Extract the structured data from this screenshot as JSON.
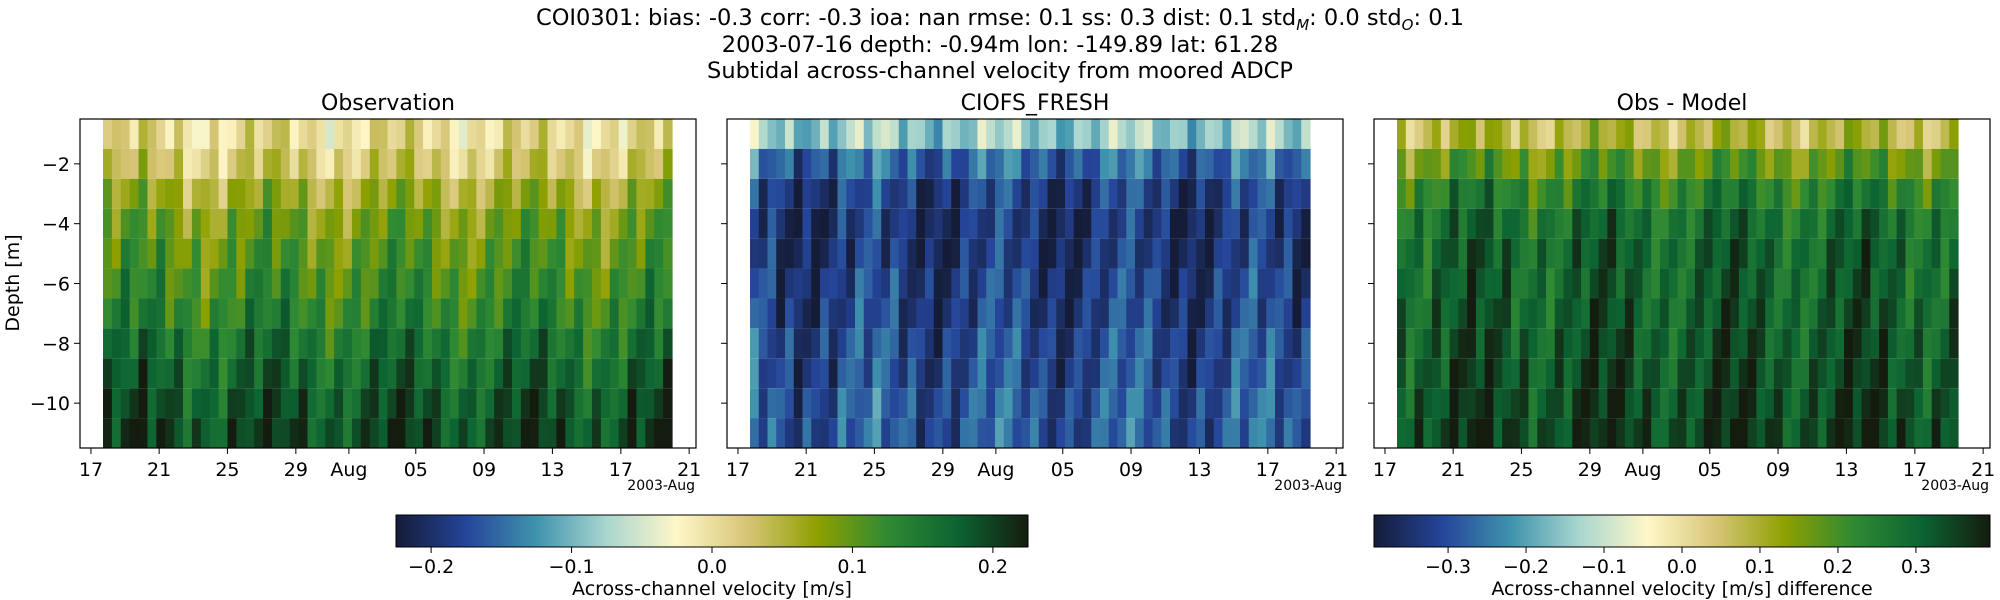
{
  "header": {
    "line1": {
      "prefix": "COI0301: bias: -0.3  corr: -0.3  ioa: nan  rmse: 0.1  ss: 0.3  dist: 0.1  std",
      "sub_m": "M",
      "mid": ": 0.0  std",
      "sub_o": "O",
      "suffix": ": 0.1"
    },
    "line2": "2003-07-16 depth: -0.94m lon: -149.89 lat: 61.28",
    "line3": "Subtidal across-channel velocity from moored ADCP"
  },
  "colors": {
    "colormap": [
      "#141c38",
      "#25459a",
      "#3f93ad",
      "#a9d6cf",
      "#fff7c8",
      "#d6c576",
      "#8ea000",
      "#2f8a33",
      "#0c6432",
      "#141c0f"
    ],
    "frame": "#000000"
  },
  "chart_data": [
    {
      "type": "heatmap",
      "title": "Observation",
      "ylabel": "Depth [m]",
      "ylim": [
        -11.5,
        -0.5
      ],
      "yticks": [
        -2,
        -4,
        -6,
        -8,
        -10
      ],
      "ytick_labels": [
        "−2",
        "−4",
        "−6",
        "−8",
        "−10"
      ],
      "xticks": [
        "17",
        "21",
        "25",
        "29",
        "Aug",
        "05",
        "09",
        "13",
        "17",
        "21"
      ],
      "xlabel_offset": "2003-Aug",
      "depth_bins": 11,
      "time_columns": 64,
      "value_range": [
        -0.22,
        0.22
      ],
      "depth_profile": [
        0.005,
        0.025,
        0.06,
        0.085,
        0.1,
        0.115,
        0.13,
        0.15,
        0.165,
        0.18,
        0.19
      ]
    },
    {
      "type": "heatmap",
      "title": "CIOFS_FRESH",
      "ylim": [
        -11.5,
        -0.5
      ],
      "xticks": [
        "17",
        "21",
        "25",
        "29",
        "Aug",
        "05",
        "09",
        "13",
        "17",
        "21"
      ],
      "xlabel_offset": "2003-Aug",
      "depth_bins": 11,
      "time_columns": 64,
      "value_range": [
        -0.22,
        0.22
      ],
      "depth_profile": [
        -0.08,
        -0.15,
        -0.18,
        -0.19,
        -0.19,
        -0.18,
        -0.18,
        -0.17,
        -0.17,
        -0.16,
        -0.16
      ]
    },
    {
      "type": "heatmap",
      "title": "Obs - Model",
      "ylim": [
        -11.5,
        -0.5
      ],
      "xticks": [
        "17",
        "21",
        "25",
        "29",
        "Aug",
        "05",
        "09",
        "13",
        "17",
        "21"
      ],
      "xlabel_offset": "2003-Aug",
      "depth_bins": 11,
      "time_columns": 64,
      "value_range": [
        -0.39,
        0.39
      ],
      "depth_profile": [
        0.08,
        0.17,
        0.24,
        0.28,
        0.3,
        0.3,
        0.31,
        0.32,
        0.33,
        0.34,
        0.35
      ]
    }
  ],
  "colorbars": [
    {
      "label": "Across-channel velocity [m/s]",
      "range": [
        -0.225,
        0.225
      ],
      "ticks": [
        -0.2,
        -0.1,
        0.0,
        0.1,
        0.2
      ],
      "tick_labels": [
        "−0.2",
        "−0.1",
        "0.0",
        "0.1",
        "0.2"
      ]
    },
    {
      "label": "Across-channel velocity [m/s] difference",
      "range": [
        -0.395,
        0.395
      ],
      "ticks": [
        -0.3,
        -0.2,
        -0.1,
        0.0,
        0.1,
        0.2,
        0.3
      ],
      "tick_labels": [
        "−0.3",
        "−0.2",
        "−0.1",
        "0.0",
        "0.1",
        "0.2",
        "0.3"
      ]
    }
  ]
}
